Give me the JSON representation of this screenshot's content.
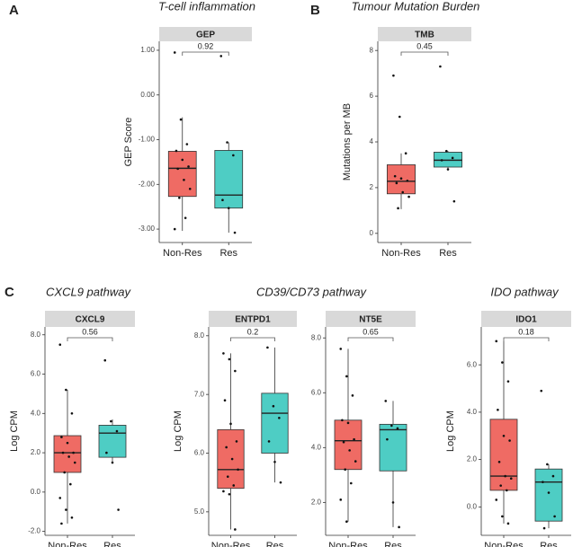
{
  "chart_data": [
    {
      "type": "box",
      "panel_label": "A",
      "title": "T-cell inflammation",
      "facet": "GEP",
      "ylabel": "GEP Score",
      "p_value": "0.92",
      "categories": [
        "Non-Res",
        "Res"
      ],
      "colors": [
        "#ef6b64",
        "#4ecdc4"
      ],
      "q1": [
        -2.27,
        -2.53
      ],
      "median": [
        -1.64,
        -2.24
      ],
      "q3": [
        -1.26,
        -1.24
      ],
      "whisker_low": [
        -3.04,
        -3.08
      ],
      "whisker_high": [
        -0.5,
        -1.06
      ],
      "points": [
        [
          0.95,
          -0.55,
          -1.1,
          -1.25,
          -1.45,
          -1.6,
          -1.65,
          -1.9,
          -2.1,
          -2.3,
          -2.75,
          -3.0
        ],
        [
          0.87,
          -1.06,
          -1.35,
          -2.35,
          -2.53,
          -3.08
        ]
      ],
      "ylim": [
        -3.3,
        1.2
      ],
      "yticks": [
        {
          "value": 1,
          "label": "1.00"
        },
        {
          "value": 0,
          "label": "0.00"
        },
        {
          "value": -1,
          "label": "-1.00"
        },
        {
          "value": -2,
          "label": "-2.00"
        },
        {
          "value": -3,
          "label": "-3.00"
        }
      ]
    },
    {
      "type": "box",
      "panel_label": "B",
      "title": "Tumour Mutation Burden",
      "facet": "TMB",
      "ylabel": "Mutations per MB",
      "p_value": "0.45",
      "categories": [
        "Non-Res",
        "Res"
      ],
      "colors": [
        "#ef6b64",
        "#4ecdc4"
      ],
      "q1": [
        1.73,
        2.9
      ],
      "median": [
        2.28,
        3.2
      ],
      "q3": [
        3.0,
        3.55
      ],
      "whisker_low": [
        1.06,
        2.75
      ],
      "whisker_high": [
        3.5,
        3.6
      ],
      "points": [
        [
          6.9,
          5.1,
          3.5,
          2.5,
          2.4,
          2.3,
          2.2,
          1.8,
          1.6,
          1.1
        ],
        [
          7.3,
          3.6,
          3.3,
          3.2,
          2.8,
          1.4
        ]
      ],
      "ylim": [
        -0.4,
        8.4
      ],
      "yticks": [
        0,
        2,
        4,
        6,
        8
      ]
    },
    {
      "type": "box",
      "panel_label": "C",
      "title": "CXCL9 pathway",
      "facet": "CXCL9",
      "ylabel": "Log CPM",
      "p_value": "0.56",
      "categories": [
        "Non-Res",
        "Res"
      ],
      "colors": [
        "#ef6b64",
        "#4ecdc4"
      ],
      "q1": [
        1.0,
        1.77
      ],
      "median": [
        2.0,
        3.0
      ],
      "q3": [
        2.87,
        3.4
      ],
      "whisker_low": [
        -1.6,
        1.5
      ],
      "whisker_high": [
        5.2,
        3.7
      ],
      "points": [
        [
          7.5,
          5.2,
          4.0,
          2.8,
          2.5,
          2.0,
          2.0,
          1.8,
          1.5,
          1.0,
          0.4,
          -0.3,
          -0.9,
          -1.3,
          -1.6
        ],
        [
          6.7,
          3.6,
          3.1,
          2.0,
          1.5,
          -0.9
        ]
      ],
      "ylim": [
        -2.2,
        8.4
      ],
      "yticks": [
        {
          "value": 8,
          "label": "8.0"
        },
        {
          "value": 6,
          "label": "6.0"
        },
        {
          "value": 4,
          "label": "4.0"
        },
        {
          "value": 2,
          "label": "2.0"
        },
        {
          "value": 0,
          "label": "0.0"
        },
        {
          "value": -2,
          "label": "-2.0"
        }
      ]
    },
    {
      "type": "box",
      "title": "CD39/CD73 pathway",
      "facet": "ENTPD1",
      "ylabel": "Log CPM",
      "p_value": "0.2",
      "categories": [
        "Non-Res",
        "Res"
      ],
      "colors": [
        "#ef6b64",
        "#4ecdc4"
      ],
      "q1": [
        5.4,
        6.0
      ],
      "median": [
        5.72,
        6.68
      ],
      "q3": [
        6.4,
        7.02
      ],
      "whisker_low": [
        4.7,
        5.5
      ],
      "whisker_high": [
        7.7,
        7.8
      ],
      "points": [
        [
          7.7,
          7.6,
          7.4,
          6.9,
          6.5,
          6.2,
          6.1,
          5.9,
          5.72,
          5.6,
          5.45,
          5.35,
          5.3,
          4.7
        ],
        [
          7.8,
          6.8,
          6.6,
          6.2,
          5.85,
          5.5
        ]
      ],
      "ylim": [
        4.6,
        8.15
      ],
      "yticks": [
        {
          "value": 8,
          "label": "8.0"
        },
        {
          "value": 7,
          "label": "7.0"
        },
        {
          "value": 6,
          "label": "6.0"
        },
        {
          "value": 5,
          "label": "5.0"
        }
      ]
    },
    {
      "type": "box",
      "facet": "NT5E",
      "p_value": "0.65",
      "categories": [
        "Non-Res",
        "Res"
      ],
      "colors": [
        "#ef6b64",
        "#4ecdc4"
      ],
      "q1": [
        3.2,
        3.15
      ],
      "median": [
        4.25,
        4.65
      ],
      "q3": [
        5.0,
        4.85
      ],
      "whisker_low": [
        1.3,
        1.1
      ],
      "whisker_high": [
        7.6,
        5.7
      ],
      "points": [
        [
          7.6,
          6.6,
          5.9,
          5.0,
          4.9,
          4.3,
          4.2,
          3.9,
          3.5,
          3.2,
          2.7,
          2.1,
          1.3
        ],
        [
          5.7,
          4.8,
          4.7,
          4.3,
          2.0,
          1.1
        ]
      ],
      "ylim": [
        0.8,
        8.4
      ],
      "yticks": [
        {
          "value": 8,
          "label": "8.0"
        },
        {
          "value": 6,
          "label": "6.0"
        },
        {
          "value": 4,
          "label": "4.0"
        },
        {
          "value": 2,
          "label": "2.0"
        }
      ]
    },
    {
      "type": "box",
      "title": "IDO pathway",
      "facet": "IDO1",
      "ylabel": "Log CPM",
      "p_value": "0.18",
      "categories": [
        "Non-Res",
        "Res"
      ],
      "colors": [
        "#ef6b64",
        "#4ecdc4"
      ],
      "q1": [
        0.7,
        -0.6
      ],
      "median": [
        1.3,
        1.05
      ],
      "q3": [
        3.7,
        1.6
      ],
      "whisker_low": [
        -0.7,
        -0.9
      ],
      "whisker_high": [
        7.0,
        1.8
      ],
      "points": [
        [
          7.0,
          6.1,
          5.3,
          4.1,
          3.0,
          2.8,
          1.9,
          1.3,
          1.2,
          0.9,
          0.7,
          0.3,
          -0.4,
          -0.7
        ],
        [
          4.9,
          1.8,
          1.3,
          1.05,
          0.6,
          -0.4,
          -0.9
        ]
      ],
      "ylim": [
        -1.2,
        7.6
      ],
      "yticks": [
        {
          "value": 6,
          "label": "6.0"
        },
        {
          "value": 4,
          "label": "4.0"
        },
        {
          "value": 2,
          "label": "2.0"
        },
        {
          "value": 0,
          "label": "0.0"
        }
      ]
    }
  ]
}
